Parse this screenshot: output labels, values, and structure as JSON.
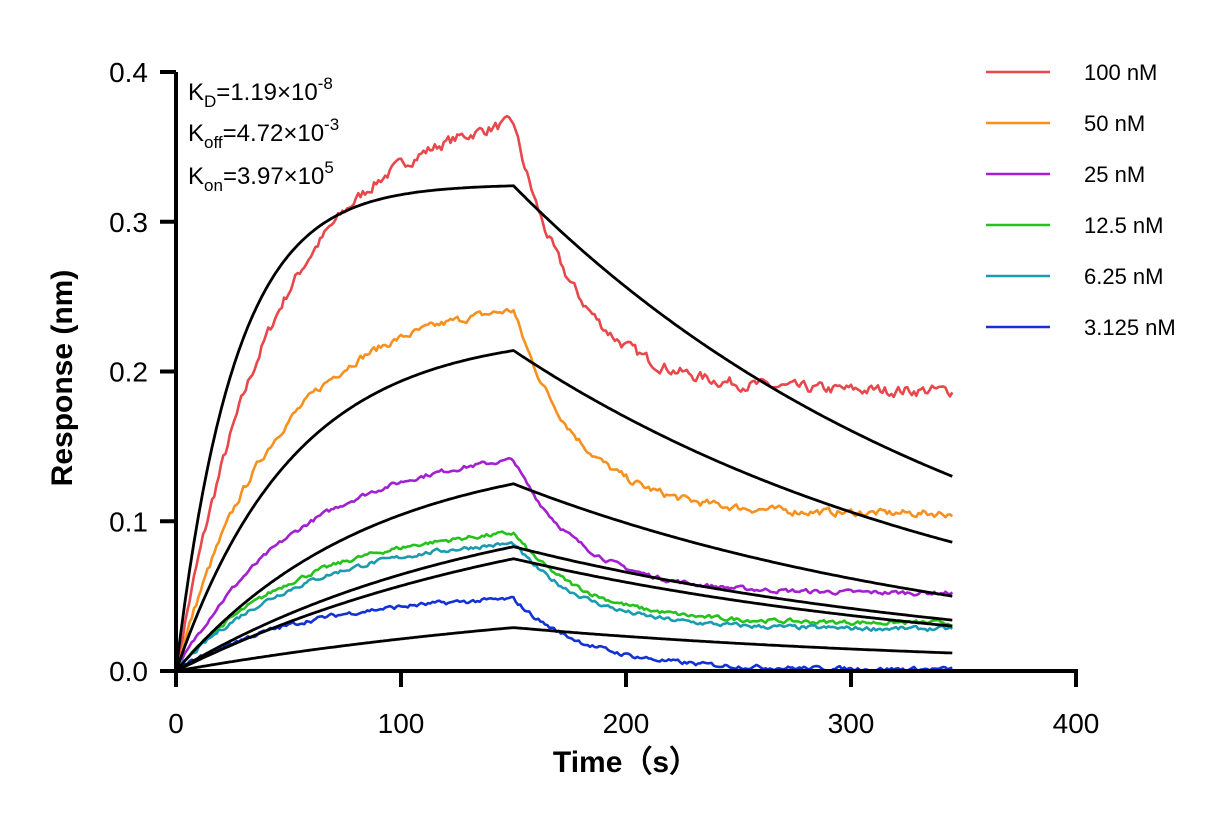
{
  "chart_data": {
    "type": "line",
    "title": "",
    "xlabel": "Time（s）",
    "ylabel": "Response (nm)",
    "xlim": [
      0,
      400
    ],
    "ylim": [
      0,
      0.4
    ],
    "x_ticks": [
      "0",
      "100",
      "200",
      "300",
      "400"
    ],
    "y_ticks": [
      "0.0",
      "0.1",
      "0.2",
      "0.3",
      "0.4"
    ],
    "x_tick_values": [
      0,
      100,
      200,
      300,
      400
    ],
    "y_tick_values": [
      0,
      0.1,
      0.2,
      0.3,
      0.4
    ],
    "legend_position": "top-right",
    "association_end_s": 150,
    "end_s": 345,
    "kinetics": {
      "kd": {
        "base": "K",
        "sub": "D",
        "value": "=1.19×10",
        "exp": "-8"
      },
      "koff": {
        "base": "K",
        "sub": "off",
        "value": "=4.72×10",
        "exp": "-3"
      },
      "kon": {
        "base": "K",
        "sub": "on",
        "value": "=3.97×10",
        "exp": "5"
      }
    },
    "series": [
      {
        "name": "100 nM",
        "color": "#e8474b",
        "conc_nM": 100,
        "measured_peak": 0.366,
        "measured_end": 0.187,
        "fit_peak": 0.324,
        "fit_end": 0.13,
        "fit_tau": 26
      },
      {
        "name": "50 nM",
        "color": "#f7901e",
        "conc_nM": 50,
        "measured_peak": 0.241,
        "measured_end": 0.105,
        "fit_peak": 0.214,
        "fit_end": 0.086,
        "fit_tau": 52
      },
      {
        "name": "25 nM",
        "color": "#a31fd1",
        "conc_nM": 25,
        "measured_peak": 0.141,
        "measured_end": 0.052,
        "fit_peak": 0.125,
        "fit_end": 0.05,
        "fit_tau": 85
      },
      {
        "name": "12.5 nM",
        "color": "#26c21c",
        "conc_nM": 12.5,
        "measured_peak": 0.092,
        "measured_end": 0.032,
        "fit_peak": 0.083,
        "fit_end": 0.034,
        "fit_tau": 140
      },
      {
        "name": "6.25 nM",
        "color": "#1a9bb0",
        "conc_nM": 6.25,
        "measured_peak": 0.085,
        "measured_end": 0.028,
        "fit_peak": 0.075,
        "fit_end": 0.03,
        "fit_tau": 170
      },
      {
        "name": "3.125 nM",
        "color": "#1232d6",
        "conc_nM": 3.125,
        "measured_peak": 0.048,
        "measured_end": 0.001,
        "fit_peak": 0.029,
        "fit_end": 0.012,
        "fit_tau": 220
      }
    ],
    "fit_color": "#000000"
  }
}
